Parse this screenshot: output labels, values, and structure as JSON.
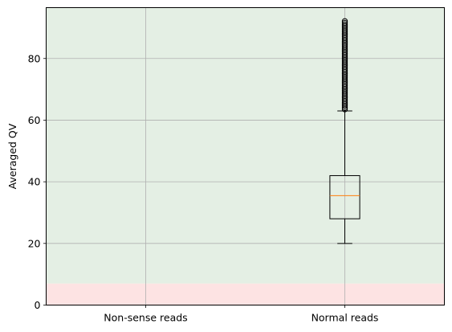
{
  "chart_data": {
    "type": "box",
    "categories": [
      "Non-sense reads",
      "Normal reads"
    ],
    "xlabel": "",
    "ylabel": "Averaged QV",
    "ylim": [
      0,
      96.5
    ],
    "y_ticks": [
      0,
      20,
      40,
      60,
      80
    ],
    "grid": true,
    "bands": [
      {
        "from": 0,
        "to": 7,
        "color": "#fde3e3"
      },
      {
        "from": 7,
        "to": 96.5,
        "color": "#e4efe4"
      }
    ],
    "boxes": [
      {
        "category": "Non-sense reads",
        "empty": true
      },
      {
        "category": "Normal reads",
        "whisker_low": 20,
        "q1": 28,
        "median": 35.5,
        "q3": 42,
        "whisker_high": 63,
        "outliers_min": 63.5,
        "outliers_max": 92.5
      }
    ],
    "colors": {
      "box": "#000000",
      "median": "#ff7f0e",
      "grid": "#b0b0b0"
    }
  }
}
